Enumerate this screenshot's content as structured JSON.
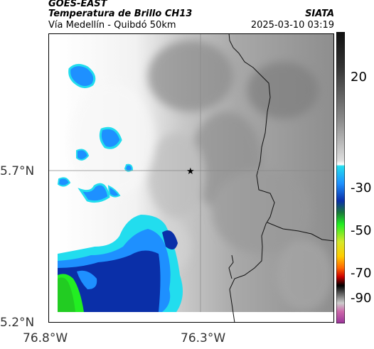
{
  "header": {
    "satellite": "GOES-EAST",
    "product": "Temperatura de Brillo CH13",
    "brand": "SIATA",
    "region": "Vía Medellín - Quibdó 50km",
    "timestamp": "2025-03-10 03:19"
  },
  "axes": {
    "lat_labels": [
      "5.7°N",
      "5.2°N"
    ],
    "lon_labels": [
      "76.8°W",
      "76.3°W"
    ]
  },
  "colorbar": {
    "ticks": [
      "20",
      "-30",
      "-50",
      "-70",
      "-90"
    ]
  },
  "marker": {
    "symbol": "★"
  },
  "colors": {
    "cold_cloud": "#1e90ff",
    "deep_convection": "#0a2fa8",
    "green_core": "#22ee22",
    "cyan_edge": "#22ddee"
  }
}
